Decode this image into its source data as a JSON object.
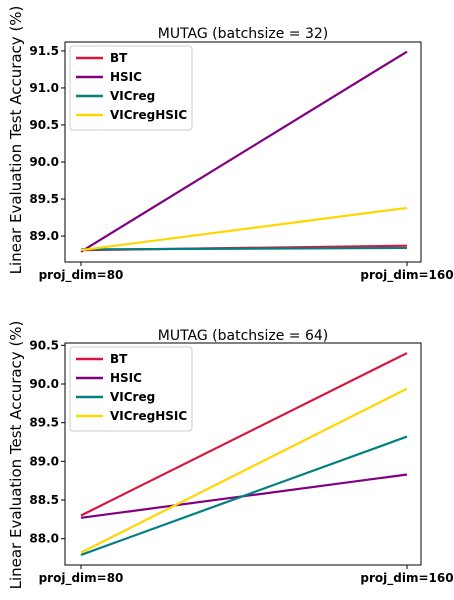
{
  "chart_data": [
    {
      "type": "line",
      "title": "MUTAG (batchsize = 32)",
      "ylabel": "Linear Evaluation Test Accuracy (%)",
      "xlabel": "",
      "categories": [
        "proj_dim=80",
        "proj_dim=160"
      ],
      "ylim": [
        88.65,
        91.62
      ],
      "yticks": [
        89.0,
        89.5,
        90.0,
        90.5,
        91.0,
        91.5
      ],
      "ytick_labels": [
        "89.0",
        "89.5",
        "90.0",
        "90.5",
        "91.0",
        "91.5"
      ],
      "legend_position": "top-left",
      "grid": false,
      "series": [
        {
          "name": "BT",
          "color": "#dc143c",
          "values": [
            88.81,
            88.87
          ]
        },
        {
          "name": "HSIC",
          "color": "#800080",
          "values": [
            88.79,
            91.49
          ]
        },
        {
          "name": "VICreg",
          "color": "#008080",
          "values": [
            88.82,
            88.84
          ]
        },
        {
          "name": "VICregHSIC",
          "color": "#ffd700",
          "values": [
            88.81,
            89.38
          ]
        }
      ]
    },
    {
      "type": "line",
      "title": "MUTAG (batchsize = 64)",
      "ylabel": "Linear Evaluation Test Accuracy (%)",
      "xlabel": "",
      "categories": [
        "proj_dim=80",
        "proj_dim=160"
      ],
      "ylim": [
        87.66,
        90.53
      ],
      "yticks": [
        88.0,
        88.5,
        89.0,
        89.5,
        90.0,
        90.5
      ],
      "ytick_labels": [
        "88.0",
        "88.5",
        "89.0",
        "89.5",
        "90.0",
        "90.5"
      ],
      "legend_position": "top-left",
      "grid": false,
      "series": [
        {
          "name": "BT",
          "color": "#dc143c",
          "values": [
            88.3,
            90.4
          ]
        },
        {
          "name": "HSIC",
          "color": "#800080",
          "values": [
            88.27,
            88.83
          ]
        },
        {
          "name": "VICreg",
          "color": "#008080",
          "values": [
            87.79,
            89.32
          ]
        },
        {
          "name": "VICregHSIC",
          "color": "#ffd700",
          "values": [
            87.82,
            89.94
          ]
        }
      ]
    }
  ]
}
